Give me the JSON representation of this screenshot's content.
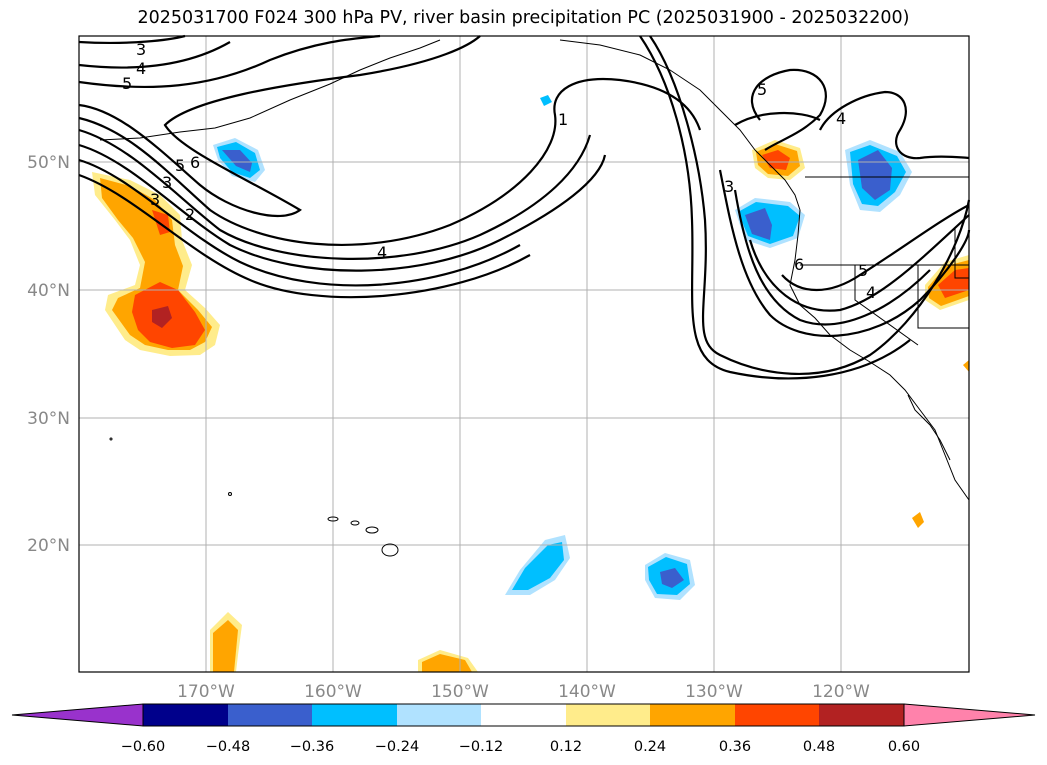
{
  "title": "2025031700 F024 300 hPa PV, river basin precipitation PC (2025031900 - 2025032200)",
  "lat_labels": [
    "50°N",
    "40°N",
    "30°N",
    "20°N"
  ],
  "lon_labels": [
    "170°W",
    "160°W",
    "150°W",
    "140°W",
    "130°W",
    "120°W"
  ],
  "contour_labels": [
    "3",
    "4",
    "5",
    "3",
    "5",
    "6",
    "3",
    "2",
    "1",
    "4",
    "3",
    "5",
    "4",
    "6",
    "5",
    "4"
  ],
  "colorbar": {
    "ticks": [
      "−0.60",
      "−0.48",
      "−0.36",
      "−0.24",
      "−0.12",
      "0.12",
      "0.24",
      "0.36",
      "0.48",
      "0.60"
    ],
    "colors": [
      "#9932CC",
      "#00008B",
      "#3A5FCD",
      "#00BFFF",
      "#B0E2FF",
      "#FFFFFF",
      "#FFEC8B",
      "#FFA500",
      "#FF4500",
      "#B22222",
      "#FF82AB"
    ]
  },
  "map": {
    "extent": {
      "lon_min": -180,
      "lon_max": -110,
      "lat_min": 10,
      "lat_max": 60
    },
    "gridlines": true,
    "field": "300 hPa PV contours with precipitation PC shading"
  }
}
